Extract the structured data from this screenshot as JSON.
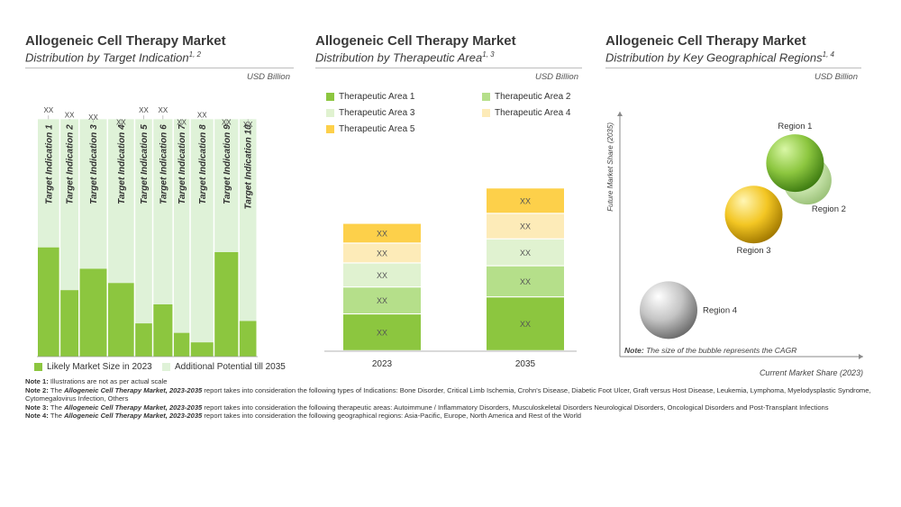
{
  "panels": {
    "indication": {
      "title": "Allogeneic Cell Therapy Market",
      "subtitle": "Distribution by Target Indication",
      "sup": "1, 2",
      "unit": "USD Billion",
      "legend": [
        "Likely Market Size in 2023",
        "Additional Potential till 2035"
      ]
    },
    "therapeutic": {
      "title": "Allogeneic Cell Therapy Market",
      "subtitle": "Distribution by Therapeutic Area",
      "sup": "1, 3",
      "unit": "USD Billion"
    },
    "geo": {
      "title": "Allogeneic Cell Therapy Market",
      "subtitle": "Distribution by Key Geographical Regions",
      "sup": "1, 4",
      "unit": "USD Billion",
      "note_label": "Note:",
      "note_text": "The size of the bubble represents the CAGR"
    }
  },
  "colors": {
    "dark_green": "#8cc63f",
    "light_green": "#dff2d8",
    "ta1": "#8cc63f",
    "ta2": "#b5df8a",
    "ta3": "#e0f2d0",
    "ta4": "#fdebb8",
    "ta5": "#fdd04a"
  },
  "chart_data": [
    {
      "type": "bar",
      "categories": [
        "Target Indication 1",
        "Target Indication 2",
        "Target Indication 3",
        "Target Indication 4",
        "Target Indication 5",
        "Target Indication 6",
        "Target Indication 7",
        "Target Indication 8",
        "Target Indication 9",
        "Target Indication 10"
      ],
      "series": [
        {
          "name": "Likely Market Size in 2023",
          "values": [
            46,
            28,
            37,
            31,
            14,
            22,
            10,
            6,
            44,
            15
          ]
        },
        {
          "name": "Additional Potential till 2035",
          "values": [
            54,
            72,
            63,
            69,
            86,
            78,
            90,
            94,
            56,
            85
          ]
        }
      ],
      "widths": [
        1.0,
        0.85,
        1.25,
        1.2,
        0.8,
        0.9,
        0.75,
        1.05,
        1.1,
        0.8
      ],
      "total_labels": [
        "XX",
        "XX",
        "XX",
        "XX",
        "XX",
        "XX",
        "XX",
        "XX",
        "XX",
        "XX"
      ],
      "label_heights": [
        102,
        100,
        99,
        97,
        102,
        102,
        97,
        100,
        97,
        96
      ],
      "ylim": [
        0,
        110
      ]
    },
    {
      "type": "bar",
      "stacked": true,
      "categories": [
        "2023",
        "2035"
      ],
      "series": [
        {
          "name": "Therapeutic Area 1",
          "values": [
            26,
            38
          ],
          "labels": [
            "XX",
            "XX"
          ]
        },
        {
          "name": "Therapeutic Area 2",
          "values": [
            19,
            22
          ],
          "labels": [
            "XX",
            "XX"
          ]
        },
        {
          "name": "Therapeutic Area 3",
          "values": [
            17,
            19
          ],
          "labels": [
            "XX",
            "XX"
          ]
        },
        {
          "name": "Therapeutic Area 4",
          "values": [
            14,
            18
          ],
          "labels": [
            "XX",
            "XX"
          ]
        },
        {
          "name": "Therapeutic Area 5",
          "values": [
            14,
            18
          ],
          "labels": [
            "XX",
            "XX"
          ]
        }
      ],
      "ylim": [
        0,
        140
      ]
    },
    {
      "type": "scatter",
      "xlabel": "Current Market Share (2023)",
      "ylabel": "Future Market Share (2035)",
      "xlim": [
        0,
        100
      ],
      "ylim": [
        0,
        100
      ],
      "points": [
        {
          "name": "Region 1",
          "x": 72,
          "y": 79,
          "size": 32,
          "color": "green",
          "label_pos": "top"
        },
        {
          "name": "Region 2",
          "x": 77,
          "y": 72,
          "size": 27,
          "color": "lightgreen",
          "label_pos": "bottom-right"
        },
        {
          "name": "Region 3",
          "x": 55,
          "y": 58,
          "size": 32,
          "color": "gold",
          "label_pos": "bottom"
        },
        {
          "name": "Region 4",
          "x": 20,
          "y": 19,
          "size": 32,
          "color": "silver",
          "label_pos": "right"
        }
      ]
    }
  ],
  "notes": [
    {
      "label": "Note 1:",
      "pre": "Illustrations are not as per actual scale",
      "italic": "",
      "post": ""
    },
    {
      "label": "Note 2:",
      "pre": "The",
      "italic": "Allogeneic Cell Therapy Market, 2023-2035",
      "post": "report takes into consideration the following types of Indications: Bone Disorder, Critical Limb Ischemia, Crohn's Disease, Diabetic Foot Ulcer, Graft versus Host Disease, Leukemia, Lymphoma, Myelodysplastic Syndrome, Cytomegalovirus Infection, Others"
    },
    {
      "label": "Note 3:",
      "pre": "The",
      "italic": "Allogeneic Cell Therapy Market, 2023-2035",
      "post": "report takes into consideration the following therapeutic areas: Autoimmune / Inflammatory Disorders, Musculoskeletal Disorders Neurological Disorders, Oncological Disorders and Post-Transplant Infections"
    },
    {
      "label": "Note 4:",
      "pre": "The",
      "italic": "Allogeneic Cell Therapy Market, 2023-2035",
      "post": "report takes into consideration the following geographical regions: Asia-Pacific, Europe, North America and Rest of the World"
    }
  ]
}
